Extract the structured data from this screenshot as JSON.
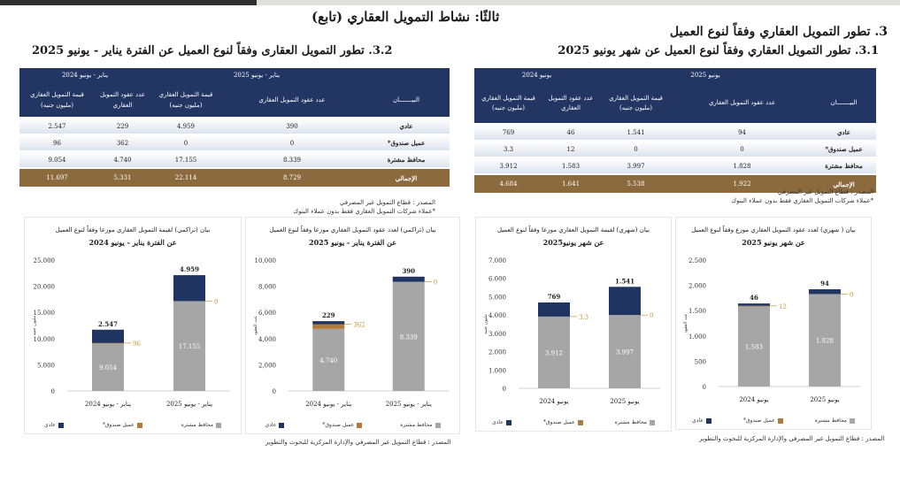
{
  "header": {
    "section_title": "ثالثًا: نشاط التمويل العقاري (تابع)",
    "subsection_3": "3. تطور التمويل العقاري وفقاً لنوع العميل",
    "subsection_3_1": "3.1. تطور التمويل العقاري وفقاً لنوع العميل عن  شهر يونيو 2025",
    "subsection_3_2": "3.2. تطور التمويل العقارى وفقاً لنوع العميل عن الفترة يناير - يونيو 2025"
  },
  "colors": {
    "header_navy": "#223563",
    "total_brown": "#8b6a3e",
    "series_gray": "#a6a6a6",
    "series_orange": "#b07a3a",
    "series_navy": "#1f3461",
    "orange_label": "#c8953a"
  },
  "table_cumulative": {
    "period_new": "يناير - يونيو 2025",
    "period_old": "يناير - يونيو 2024",
    "col_label": "البيـــــــان",
    "col_count": "عدد عقود التمويل العقاري",
    "col_value": "قيمة التمويل العقاري",
    "col_value_unit": "(مليون جنيه)",
    "rows": [
      {
        "label": "عادي",
        "count_new": "390",
        "value_new": "4.959",
        "count_old": "229",
        "value_old": "2.547"
      },
      {
        "label": "عميل صندوق*",
        "count_new": "0",
        "value_new": "0",
        "count_old": "362",
        "value_old": "96"
      },
      {
        "label": "محافظ مشترة",
        "count_new": "8.339",
        "value_new": "17.155",
        "count_old": "4.740",
        "value_old": "9.054"
      }
    ],
    "total": {
      "label": "الإجمالي",
      "count_new": "8.729",
      "value_new": "22.114",
      "count_old": "5.331",
      "value_old": "11.697"
    },
    "source": "المصدر : قطاع التمويل غير المصرفي",
    "footnote": "*عملاء شركات التمويل العقاري فقط بدون عملاء البنوك"
  },
  "table_monthly": {
    "period_new": "يونيو 2025",
    "period_old": "يونيو 2024",
    "col_label": "البيـــــــان",
    "col_count": "عدد عقود التمويل العقاري",
    "col_value": "قيمة التمويل العقاري",
    "col_value_unit": "(مليون جنيه)",
    "rows": [
      {
        "label": "عادي",
        "count_new": "94",
        "value_new": "1.541",
        "count_old": "46",
        "value_old": "769"
      },
      {
        "label": "عميل صندوق*",
        "count_new": "0",
        "value_new": "0",
        "count_old": "12",
        "value_old": "3.3"
      },
      {
        "label": "محافظ مشترة",
        "count_new": "1.828",
        "value_new": "3.997",
        "count_old": "1.583",
        "value_old": "3.912"
      }
    ],
    "total": {
      "label": "الإجمالي",
      "count_new": "1.922",
      "value_new": "5.538",
      "count_old": "1.641",
      "value_old": "4.684"
    },
    "source": "المصدر : قطاع التمويل غير المصرفي",
    "footnote": "*عملاء شركات التمويل العقاري فقط بدون عملاء البنوك"
  },
  "chart_source": "المصدر : قطاع التمويل غير المصرفي والإدارة المركزية للبحوث والتطوير",
  "chart_data": [
    {
      "type": "bar",
      "stacked": true,
      "title": "بيان (تراكمي) لقيمة التمويل العقاري موزعا وفقاً لنوع العميل",
      "subtitle": "عن الفترة يناير - يونيو 2024",
      "ylabel": "مليون جنيه",
      "ylim": [
        0,
        25000
      ],
      "yticks": [
        0,
        5000,
        10000,
        15000,
        20000,
        25000
      ],
      "categories": [
        "يناير - يونيو 2024",
        "يناير - يونيو 2025"
      ],
      "series": [
        {
          "name": "محافظ مشترة",
          "values": [
            9054,
            17155
          ]
        },
        {
          "name": "عميل صندوق*",
          "values": [
            96,
            0
          ]
        },
        {
          "name": "عادي",
          "values": [
            2547,
            4959
          ]
        }
      ],
      "legend": "bottom",
      "grid": false
    },
    {
      "type": "bar",
      "stacked": true,
      "title": "بيان (تراكمي) لعدد عقود التمويل العقاري موزعا وفقاً لنوع العميل",
      "subtitle": "عن الفترة يناير - يونيو 2025",
      "ylabel": "عدد العقود",
      "ylim": [
        0,
        10000
      ],
      "yticks": [
        0,
        2000,
        4000,
        6000,
        8000,
        10000
      ],
      "tick_format": "comma",
      "categories": [
        "يناير - يونيو 2024",
        "يناير - يونيو 2025"
      ],
      "series": [
        {
          "name": "محافظ مشترة",
          "values": [
            4740,
            8339
          ]
        },
        {
          "name": "عميل صندوق*",
          "values": [
            362,
            0
          ]
        },
        {
          "name": "عادي",
          "values": [
            229,
            390
          ]
        }
      ],
      "legend": "bottom",
      "grid": false
    },
    {
      "type": "bar",
      "stacked": true,
      "title": "بيان (شهري) لقيمة التمويل العقاري موزعا وفقاً لنوع العميل",
      "subtitle": "عن شهر يونيو2025",
      "ylabel": "مليون جنيه",
      "ylim": [
        0,
        7000
      ],
      "yticks": [
        0,
        1000,
        2000,
        3000,
        4000,
        5000,
        6000,
        7000
      ],
      "categories": [
        "يونيو 2024",
        "يونيو 2025"
      ],
      "series": [
        {
          "name": "محافظ مشترة",
          "values": [
            3912,
            3997
          ]
        },
        {
          "name": "عميل صندوق*",
          "values": [
            3.3,
            0
          ]
        },
        {
          "name": "عادي",
          "values": [
            769,
            1541
          ]
        }
      ],
      "legend": "bottom",
      "grid": false
    },
    {
      "type": "bar",
      "stacked": true,
      "title": "بيان ( شهري) لعدد عقود التمويل العقاري موزع وفقاً لنوع العميل",
      "subtitle": "عن شهر يونيو 2025",
      "ylabel": "عدد العقود",
      "ylim": [
        0,
        2500
      ],
      "yticks": [
        0,
        500,
        1000,
        1500,
        2000,
        2500
      ],
      "categories": [
        "يونيو 2024",
        "يونيو 2025"
      ],
      "series": [
        {
          "name": "محافظ مشترة",
          "values": [
            1583,
            1828
          ]
        },
        {
          "name": "عميل صندوق*",
          "values": [
            12,
            0
          ]
        },
        {
          "name": "عادي",
          "values": [
            46,
            94
          ]
        }
      ],
      "legend": "bottom",
      "grid": false
    }
  ]
}
